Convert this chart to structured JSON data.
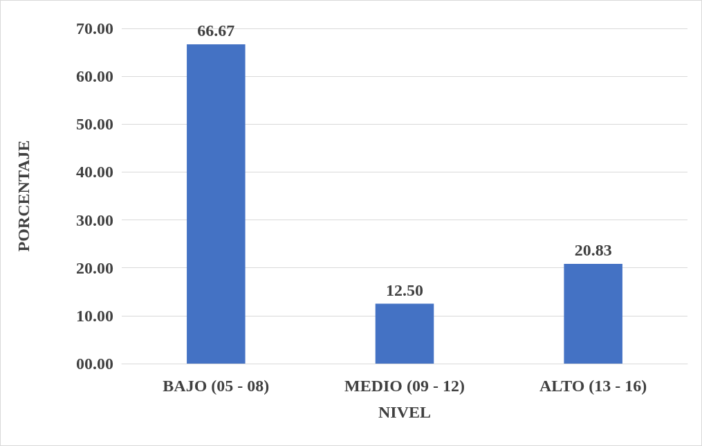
{
  "chart_data": {
    "type": "bar",
    "xlabel": "NIVEL",
    "ylabel": "PORCENTAJE",
    "categories": [
      "BAJO (05 - 08)",
      "MEDIO (09 - 12)",
      "ALTO (13 - 16)"
    ],
    "values": [
      66.67,
      12.5,
      20.83
    ],
    "value_labels": [
      "66.67",
      "12.50",
      "20.83"
    ],
    "color": "#4472c4",
    "ylim": [
      0,
      70
    ],
    "yticks": [
      {
        "value": 0,
        "label": "00.00"
      },
      {
        "value": 10,
        "label": "10.00"
      },
      {
        "value": 20,
        "label": "20.00"
      },
      {
        "value": 30,
        "label": "30.00"
      },
      {
        "value": 40,
        "label": "40.00"
      },
      {
        "value": 50,
        "label": "50.00"
      },
      {
        "value": 60,
        "label": "60.00"
      },
      {
        "value": 70,
        "label": "70.00"
      }
    ],
    "grid": "y"
  }
}
